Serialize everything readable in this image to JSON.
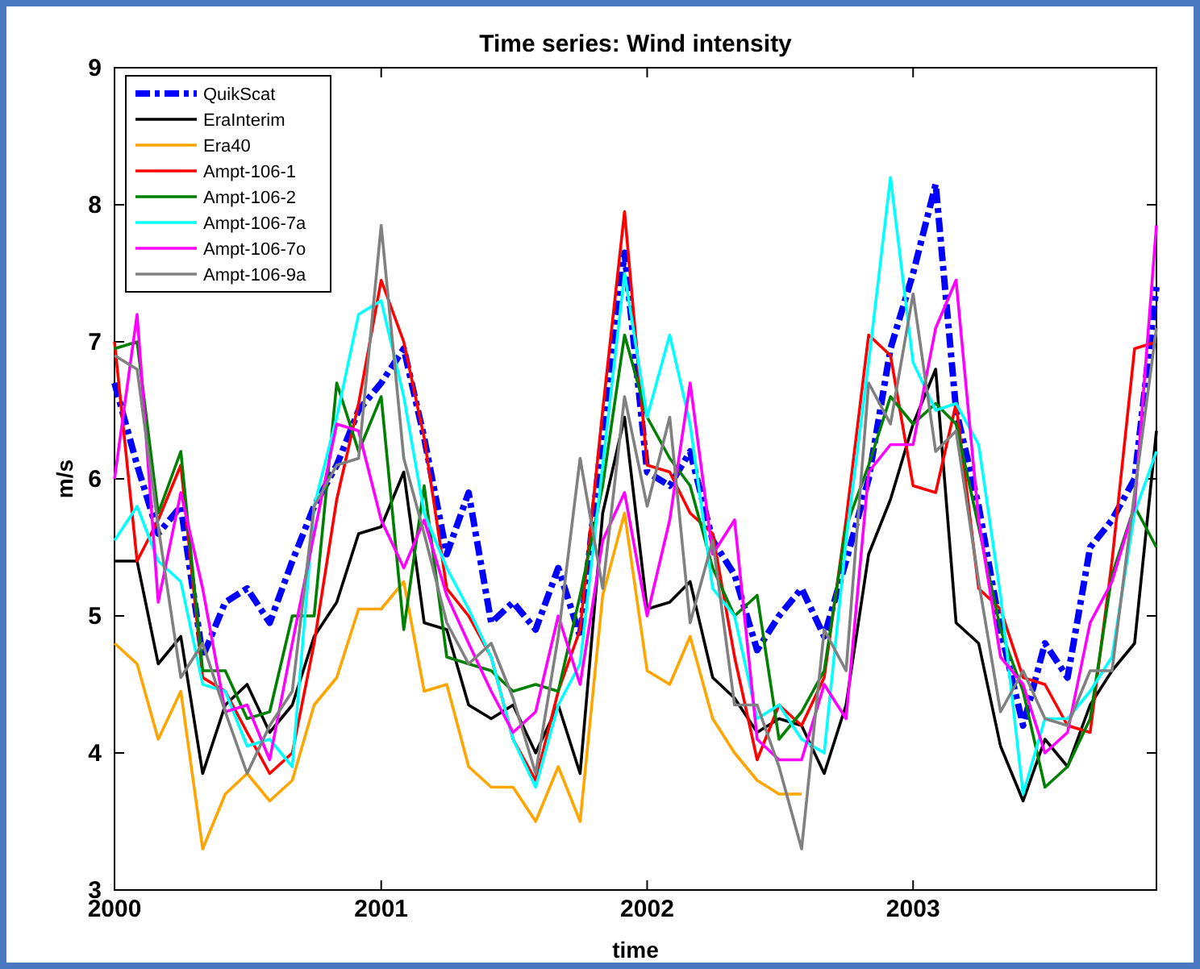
{
  "chart_data": {
    "type": "line",
    "title": "Time series: Wind intensity",
    "xlabel": "time",
    "ylabel": "m/s",
    "x": [
      "2000-01",
      "2000-02",
      "2000-03",
      "2000-04",
      "2000-05",
      "2000-06",
      "2000-07",
      "2000-08",
      "2000-09",
      "2000-10",
      "2000-11",
      "2000-12",
      "2001-01",
      "2001-02",
      "2001-03",
      "2001-04",
      "2001-05",
      "2001-06",
      "2001-07",
      "2001-08",
      "2001-09",
      "2001-10",
      "2001-11",
      "2001-12",
      "2002-01",
      "2002-02",
      "2002-03",
      "2002-04",
      "2002-05",
      "2002-06",
      "2002-07",
      "2002-08",
      "2002-09",
      "2002-10",
      "2002-11",
      "2002-12",
      "2003-01",
      "2003-02",
      "2003-03",
      "2003-04",
      "2003-05",
      "2003-06",
      "2003-07",
      "2003-08",
      "2003-09",
      "2003-10",
      "2003-11",
      "2003-12"
    ],
    "xlim": [
      "2000-01",
      "2003-12"
    ],
    "xticks": [
      {
        "value": "2000-01",
        "label": "2000"
      },
      {
        "value": "2001-01",
        "label": "2001"
      },
      {
        "value": "2002-01",
        "label": "2002"
      },
      {
        "value": "2003-01",
        "label": "2003"
      }
    ],
    "ylim": [
      3,
      9
    ],
    "yticks": [
      3,
      4,
      5,
      6,
      7,
      8,
      9
    ],
    "grid": false,
    "legend": "top left",
    "series": [
      {
        "name": "QuikScat",
        "color": "#0000ff",
        "line_style": "dashed",
        "values": [
          6.7,
          6.1,
          5.6,
          5.8,
          4.7,
          5.1,
          5.2,
          4.95,
          5.4,
          5.8,
          6.1,
          6.5,
          6.7,
          6.95,
          6.3,
          5.45,
          5.9,
          4.95,
          5.1,
          4.9,
          5.35,
          4.85,
          6.35,
          7.65,
          6.05,
          5.95,
          6.2,
          5.55,
          5.3,
          4.75,
          5.0,
          5.2,
          4.85,
          5.4,
          6.0,
          6.95,
          7.5,
          8.15,
          6.5,
          5.8,
          4.9,
          4.2,
          4.8,
          4.55,
          5.5,
          5.7,
          6.0,
          7.4
        ]
      },
      {
        "name": "EraInterim",
        "color": "#000000",
        "line_style": "solid",
        "values": [
          5.4,
          5.4,
          4.65,
          4.85,
          3.85,
          4.35,
          4.5,
          4.15,
          4.35,
          4.85,
          5.1,
          5.6,
          5.65,
          6.05,
          4.95,
          4.9,
          4.35,
          4.25,
          4.35,
          4.0,
          4.35,
          3.85,
          5.75,
          6.45,
          5.05,
          5.1,
          5.25,
          4.55,
          4.4,
          4.15,
          4.25,
          4.2,
          3.85,
          4.35,
          5.45,
          5.85,
          6.4,
          6.8,
          4.95,
          4.8,
          4.05,
          3.65,
          4.1,
          3.9,
          4.35,
          4.6,
          4.8,
          6.35
        ]
      },
      {
        "name": "Era40",
        "color": "#ffa500",
        "line_style": "solid",
        "values": [
          4.8,
          4.65,
          4.1,
          4.45,
          3.3,
          3.7,
          3.85,
          3.65,
          3.8,
          4.35,
          4.55,
          5.05,
          5.05,
          5.25,
          4.45,
          4.5,
          3.9,
          3.75,
          3.75,
          3.5,
          3.9,
          3.5,
          5.15,
          5.75,
          4.6,
          4.5,
          4.85,
          4.25,
          4.0,
          3.8,
          3.7,
          3.7,
          null,
          null,
          null,
          null,
          null,
          null,
          null,
          null,
          null,
          null,
          null,
          null,
          null,
          null,
          null,
          null
        ]
      },
      {
        "name": "Ampt-106-1",
        "color": "#ff0000",
        "line_style": "solid",
        "values": [
          7.0,
          5.4,
          5.7,
          6.1,
          4.55,
          4.45,
          4.15,
          3.85,
          4.0,
          4.8,
          5.85,
          6.55,
          7.45,
          7.0,
          6.3,
          5.2,
          5.0,
          4.7,
          4.1,
          3.8,
          4.45,
          4.9,
          6.5,
          7.95,
          6.1,
          6.05,
          5.75,
          5.6,
          4.7,
          3.95,
          4.35,
          4.2,
          4.55,
          5.7,
          7.05,
          6.9,
          5.95,
          5.9,
          6.55,
          5.2,
          5.05,
          4.55,
          4.5,
          4.2,
          4.15,
          5.4,
          6.95,
          7.0
        ]
      },
      {
        "name": "Ampt-106-2",
        "color": "#008000",
        "line_style": "solid",
        "values": [
          6.95,
          7.0,
          5.75,
          6.2,
          4.6,
          4.6,
          4.25,
          4.3,
          5.0,
          5.0,
          6.7,
          6.2,
          6.6,
          4.9,
          5.95,
          4.7,
          4.65,
          4.6,
          4.45,
          4.5,
          4.45,
          5.15,
          5.95,
          7.05,
          6.45,
          6.15,
          5.95,
          5.35,
          5.0,
          5.15,
          4.1,
          4.3,
          4.6,
          5.65,
          6.1,
          6.6,
          6.4,
          6.55,
          6.4,
          5.65,
          4.9,
          4.45,
          3.75,
          3.9,
          4.25,
          5.3,
          5.8,
          5.5
        ]
      },
      {
        "name": "Ampt-106-7a",
        "color": "#00ffff",
        "line_style": "solid",
        "values": [
          5.55,
          5.8,
          5.4,
          5.25,
          4.5,
          4.45,
          4.05,
          4.1,
          3.9,
          5.8,
          6.45,
          7.2,
          7.3,
          6.6,
          5.75,
          5.35,
          5.05,
          4.7,
          4.1,
          3.75,
          4.35,
          4.65,
          6.1,
          7.5,
          6.45,
          7.05,
          6.4,
          5.2,
          5.0,
          4.25,
          4.35,
          4.1,
          4.0,
          5.55,
          6.85,
          8.2,
          6.85,
          6.5,
          6.55,
          6.25,
          5.15,
          3.7,
          4.25,
          4.25,
          4.45,
          4.7,
          5.75,
          6.2
        ]
      },
      {
        "name": "Ampt-106-7o",
        "color": "#ff00ff",
        "line_style": "solid",
        "values": [
          6.0,
          7.2,
          5.1,
          5.9,
          5.2,
          4.3,
          4.35,
          3.95,
          4.8,
          5.6,
          6.4,
          6.35,
          5.7,
          5.35,
          5.7,
          5.15,
          4.8,
          4.45,
          4.15,
          4.3,
          5.0,
          4.5,
          5.55,
          5.9,
          5.0,
          5.7,
          6.7,
          5.45,
          5.7,
          4.1,
          3.95,
          3.95,
          4.5,
          4.25,
          6.05,
          6.25,
          6.25,
          7.1,
          7.45,
          5.7,
          4.7,
          4.5,
          4.0,
          4.15,
          4.95,
          5.25,
          5.8,
          7.85
        ]
      },
      {
        "name": "Ampt-106-9a",
        "color": "#808080",
        "line_style": "solid",
        "values": [
          6.9,
          6.8,
          5.65,
          4.55,
          4.8,
          4.3,
          3.85,
          4.2,
          4.45,
          5.8,
          6.1,
          6.15,
          7.85,
          6.15,
          5.6,
          4.95,
          4.65,
          4.8,
          4.4,
          3.85,
          4.85,
          6.15,
          5.2,
          6.6,
          5.8,
          6.45,
          4.95,
          5.55,
          4.35,
          4.35,
          3.9,
          3.3,
          4.9,
          4.6,
          6.7,
          6.4,
          7.35,
          6.2,
          6.35,
          5.25,
          4.3,
          4.6,
          4.25,
          4.2,
          4.6,
          4.6,
          5.9,
          7.1
        ]
      }
    ]
  }
}
